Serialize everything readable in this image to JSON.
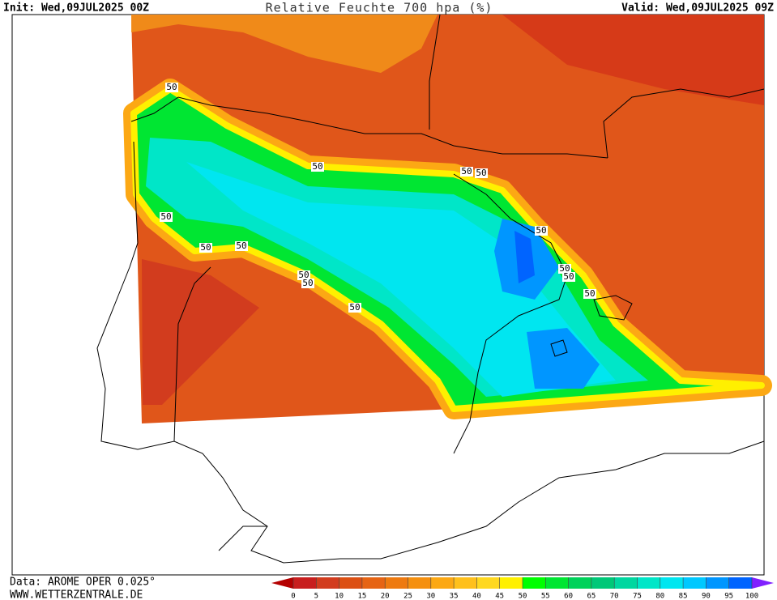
{
  "header": {
    "init": "Init: Wed,09JUL2025 00Z",
    "title": "Relative Feuchte 700 hpa (%)",
    "valid": "Valid: Wed,09JUL2025 09Z"
  },
  "footer": {
    "source": "Data: AROME OPER 0.025°",
    "website": "WWW.WETTERZENTRALE.DE"
  },
  "colorbar": {
    "ticks": [
      0,
      5,
      10,
      15,
      20,
      25,
      30,
      35,
      40,
      45,
      50,
      55,
      60,
      65,
      70,
      75,
      80,
      85,
      90,
      95,
      100
    ],
    "colors": [
      "#b40000",
      "#c81e1e",
      "#d23c1e",
      "#dc5014",
      "#e66414",
      "#ee7a10",
      "#f59010",
      "#fca814",
      "#ffc01c",
      "#ffd820",
      "#fff000",
      "#00ff00",
      "#00e632",
      "#00d25a",
      "#00c878",
      "#00d7a0",
      "#00e6c8",
      "#00e6f0",
      "#00c8ff",
      "#0096ff",
      "#0064ff",
      "#8020ff"
    ]
  },
  "contour_labels": [
    "50",
    "50",
    "50",
    "50",
    "50",
    "50",
    "50",
    "50",
    "50",
    "50",
    "50",
    "50",
    "50",
    "50"
  ]
}
